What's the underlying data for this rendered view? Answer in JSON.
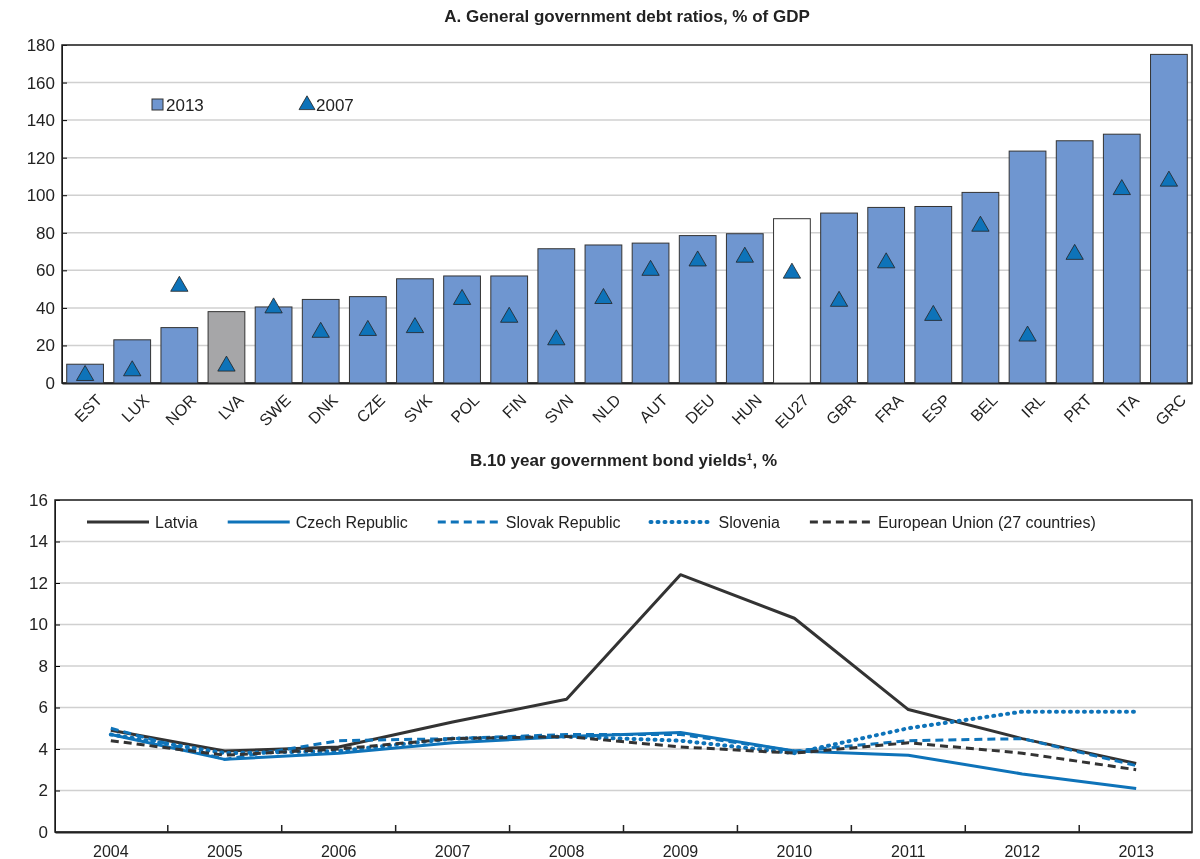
{
  "chart_data": [
    {
      "type": "bar",
      "title": "A. General government debt ratios, % of GDP",
      "categories": [
        "EST",
        "LUX",
        "NOR",
        "LVA",
        "SWE",
        "DNK",
        "CZE",
        "SVK",
        "POL",
        "FIN",
        "SVN",
        "NLD",
        "AUT",
        "DEU",
        "HUN",
        "EU27",
        "GBR",
        "FRA",
        "ESP",
        "BEL",
        "IRL",
        "PRT",
        "ITA",
        "GRC"
      ],
      "series": [
        {
          "name": "2013",
          "color": "#6f96d0",
          "colors": [
            "#6f96d0",
            "#6f96d0",
            "#6f96d0",
            "#a6a6a8",
            "#6f96d0",
            "#6f96d0",
            "#6f96d0",
            "#6f96d0",
            "#6f96d0",
            "#6f96d0",
            "#6f96d0",
            "#6f96d0",
            "#6f96d0",
            "#6f96d0",
            "#6f96d0",
            "#ffffff",
            "#6f96d0",
            "#6f96d0",
            "#6f96d0",
            "#6f96d0",
            "#6f96d0",
            "#6f96d0",
            "#6f96d0",
            "#6f96d0"
          ],
          "values": [
            10,
            23,
            29.5,
            38,
            40.5,
            44.5,
            46,
            55.5,
            57,
            57,
            71.5,
            73.5,
            74.5,
            78.5,
            79.5,
            87.5,
            90.5,
            93.5,
            94,
            101.5,
            123.5,
            129,
            132.5,
            175
          ]
        },
        {
          "name": "2007",
          "type": "scatter",
          "marker": "triangle",
          "color": "#0e73b9",
          "values": [
            4,
            6.5,
            51.5,
            9,
            40,
            27,
            28,
            29.5,
            44.5,
            35,
            23,
            45,
            60,
            65,
            67,
            58.5,
            43.5,
            64,
            36,
            83.5,
            25,
            68.5,
            103,
            107.5
          ]
        }
      ],
      "ylim": [
        0,
        180
      ],
      "yticks": [
        0,
        20,
        40,
        60,
        80,
        100,
        120,
        140,
        160,
        180
      ],
      "grid": "y",
      "legend": "top left"
    },
    {
      "type": "line",
      "title": "B.10 year government bond yields¹, %",
      "categories": [
        "2004",
        "2005",
        "2006",
        "2007",
        "2008",
        "2009",
        "2010",
        "2011",
        "2012",
        "2013"
      ],
      "series": [
        {
          "name": "Latvia",
          "color": "#333333",
          "line_style": "solid",
          "values": [
            4.9,
            3.9,
            4.1,
            5.3,
            6.4,
            12.4,
            10.3,
            5.9,
            4.5,
            3.3
          ]
        },
        {
          "name": "Czech Republic",
          "color": "#0e73b9",
          "line_style": "solid",
          "values": [
            4.7,
            3.5,
            3.8,
            4.3,
            4.6,
            4.8,
            3.9,
            3.7,
            2.8,
            2.1
          ]
        },
        {
          "name": "Slovak Republic",
          "color": "#0e73b9",
          "line_style": "dashed",
          "values": [
            5.0,
            3.5,
            4.4,
            4.5,
            4.7,
            4.7,
            3.9,
            4.4,
            4.5,
            3.2
          ]
        },
        {
          "name": "Slovenia",
          "color": "#0e73b9",
          "line_style": "dotted",
          "values": [
            4.7,
            3.8,
            3.9,
            4.5,
            4.6,
            4.4,
            3.8,
            5.0,
            5.8,
            5.8
          ]
        },
        {
          "name": "European Union (27 countries)",
          "color": "#333333",
          "line_style": "dashed",
          "values": [
            4.4,
            3.7,
            4.0,
            4.5,
            4.6,
            4.1,
            3.8,
            4.3,
            3.8,
            3.0
          ]
        }
      ],
      "ylim": [
        0,
        16
      ],
      "yticks": [
        0,
        2,
        4,
        6,
        8,
        10,
        12,
        14,
        16
      ],
      "grid": "y",
      "legend": "top"
    }
  ]
}
